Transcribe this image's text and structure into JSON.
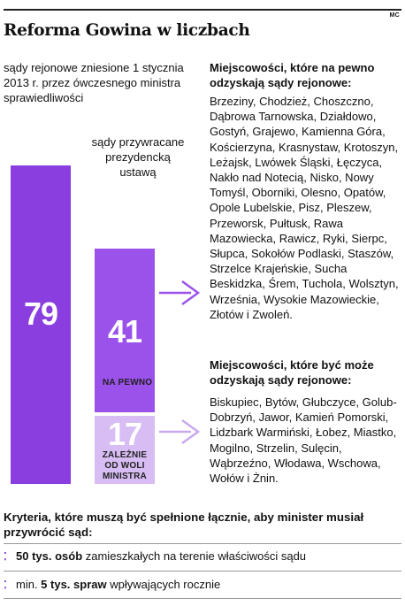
{
  "credit": "MC",
  "title": "Reforma Gowina w liczbach",
  "bar_captions": {
    "abolished": "sądy rejonowe zniesione 1 stycznia 2013 r. przez ówczesnego ministra sprawiedliwości",
    "restored": "sądy przywracane prezydencką ustawą"
  },
  "chart_data": {
    "type": "bar",
    "categories": [
      "sądy rejonowe zniesione 1 stycznia 2013 r. przez ówczesnego ministra sprawiedliwości",
      "sądy przywracane prezydencką ustawą"
    ],
    "series": [
      {
        "name": "",
        "values": [
          79,
          41
        ]
      },
      {
        "name": "",
        "values": [
          0,
          17
        ]
      }
    ],
    "bar_labels": {
      "certain": "NA PEWNO",
      "conditional": "ZALEŻNIE OD WOLI MINISTRA"
    },
    "colors": {
      "total": "#8a3ee0",
      "certain": "#9b52ea",
      "conditional": "#d7bdf3"
    }
  },
  "values": {
    "total": "79",
    "certain": "41",
    "conditional": "17"
  },
  "lists": {
    "certain_heading": "Miejscowości, które na pewno odzyskają sądy rejonowe:",
    "certain_towns": "Brzeziny, Chodzież, Choszczno, Dąbrowa Tarnowska, Działdowo, Gostyń, Grajewo, Kamienna Góra, Kościerzyna, Krasnystaw, Krotoszyn, Leżajsk, Lwówek Śląski, Łęczyca, Nakło nad Notecią, Nisko, Nowy Tomyśl, Oborniki, Olesno, Opatów, Opole Lubelskie, Pisz, Pleszew, Przeworsk, Pułtusk, Rawa Mazowiecka, Rawicz, Ryki, Sierpc, Słupca, Sokołów Podlaski, Staszów, Strzelce Krajeńskie, Sucha Beskidzka, Śrem, Tuchola, Wolsztyn, Września, Wysokie Mazowieckie, Złotów i Zwoleń.",
    "possible_heading": "Miejscowości, które być może odzyskają sądy rejonowe:",
    "possible_towns": "Biskupiec, Bytów, Głubczyce, Golub-Dobrzyń, Jawor, Kamień Pomorski, Lidzbark Warmiński, Łobez, Miastko, Mogilno, Strzelin, Sulęcin, Wąbrzeźno, Włodawa, Wschowa, Wołów i Żnin."
  },
  "criteria": {
    "title": "Kryteria, które muszą być spełnione łącznie, aby minister musiał przywrócić sąd:",
    "items": [
      {
        "prefix": "",
        "bold": "50 tys. osób",
        "rest": " zamieszkałych na terenie właściwości sądu"
      },
      {
        "prefix": "min. ",
        "bold": "5 tys. spraw",
        "rest": " wpływających rocznie"
      }
    ],
    "accent": "#7b3dd8"
  }
}
